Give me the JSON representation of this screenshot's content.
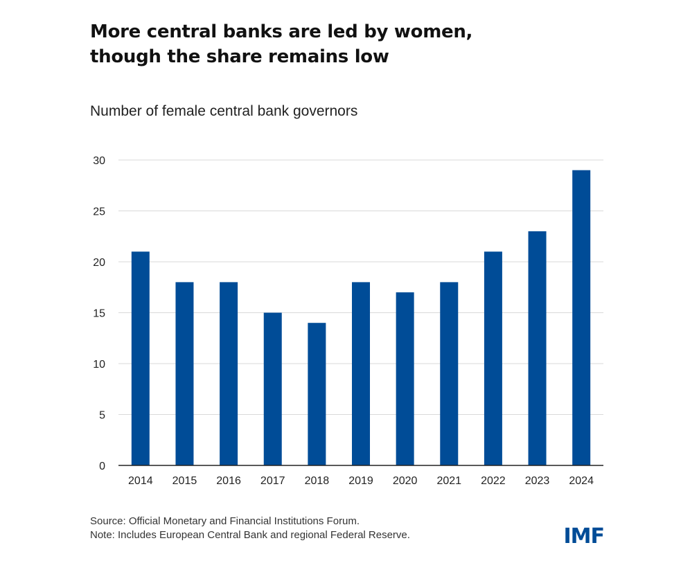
{
  "title_lines": [
    "More central banks are led by women,",
    "though the share remains low"
  ],
  "footer": {
    "source": "Source: Official Monetary and Financial Institutions Forum.",
    "note": "Note: Includes European Central Bank and regional Federal Reserve."
  },
  "logo": "IMF",
  "colors": {
    "bar": "#004c97",
    "grid": "#d9d9d9",
    "axis": "#222222"
  },
  "chart_data": {
    "type": "bar",
    "title": "More central banks are led by women, though the share remains low",
    "subtitle": "Number of female central bank governors",
    "categories": [
      "2014",
      "2015",
      "2016",
      "2017",
      "2018",
      "2019",
      "2020",
      "2021",
      "2022",
      "2023",
      "2024"
    ],
    "values": [
      21,
      18,
      18,
      15,
      14,
      18,
      17,
      18,
      21,
      23,
      29
    ],
    "xlabel": "",
    "ylabel": "",
    "ylim": [
      0,
      30
    ],
    "yticks": [
      0,
      5,
      10,
      15,
      20,
      25,
      30
    ],
    "grid": true,
    "legend": "none"
  }
}
